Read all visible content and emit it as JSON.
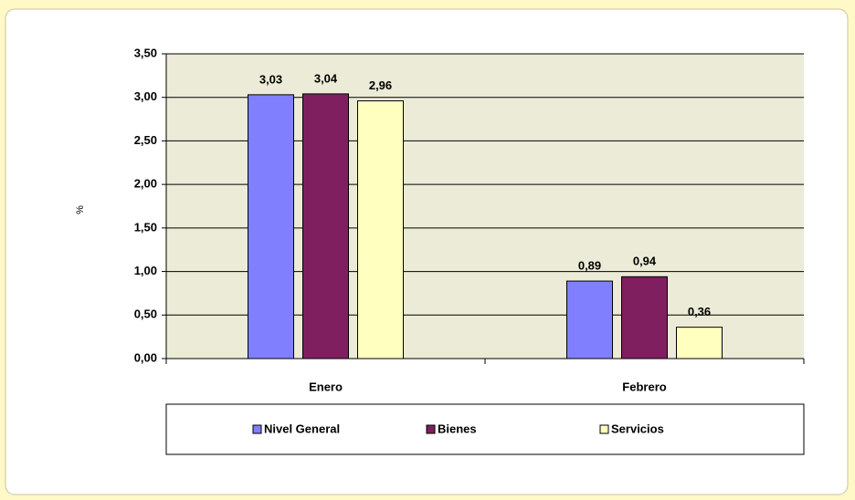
{
  "chart_data": {
    "type": "bar",
    "y_label": "%",
    "categories": [
      "Enero",
      "Febrero"
    ],
    "series": [
      {
        "name": "Nivel General",
        "color": "#8080ff",
        "values": [
          3.03,
          0.89
        ],
        "value_labels": [
          "3,03",
          "0,89"
        ]
      },
      {
        "name": "Bienes",
        "color": "#7f1f5f",
        "values": [
          3.04,
          0.94
        ],
        "value_labels": [
          "3,04",
          "0,94"
        ]
      },
      {
        "name": "Servicios",
        "color": "#ffffc0",
        "values": [
          2.96,
          0.36
        ],
        "value_labels": [
          "2,96",
          "0,36"
        ]
      }
    ],
    "ylim": [
      0,
      3.5
    ],
    "yticks": [
      {
        "value": 0,
        "label": "0,00"
      },
      {
        "value": 0.5,
        "label": "0,50"
      },
      {
        "value": 1,
        "label": "1,00"
      },
      {
        "value": 1.5,
        "label": "1,50"
      },
      {
        "value": 2,
        "label": "2,00"
      },
      {
        "value": 2.5,
        "label": "2,50"
      },
      {
        "value": 3,
        "label": "3,00"
      },
      {
        "value": 3.5,
        "label": "3,50"
      }
    ],
    "grid": true,
    "legend": "bottom"
  }
}
